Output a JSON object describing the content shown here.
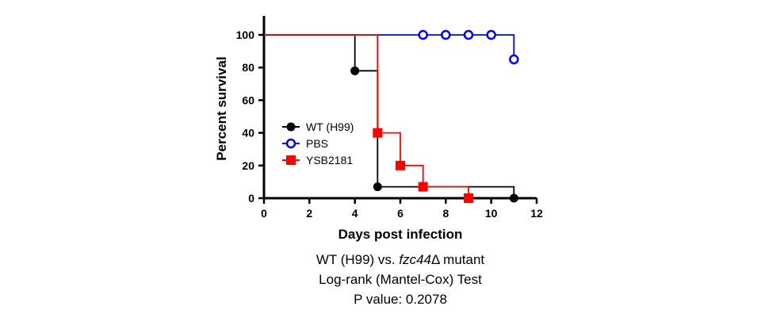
{
  "chart_data": {
    "type": "line",
    "subtype": "kaplan-meier survival (step)",
    "xlabel": "Days post infection",
    "ylabel": "Percent survival",
    "xlim": [
      0,
      12
    ],
    "ylim": [
      0,
      100
    ],
    "xticks": [
      0,
      2,
      4,
      6,
      8,
      10,
      12
    ],
    "yticks": [
      0,
      20,
      40,
      60,
      80,
      100
    ],
    "grid": false,
    "legend_position": "left-center",
    "series": [
      {
        "name": "WT (H99)",
        "color": "#000000",
        "marker": "filled-circle",
        "steps": [
          [
            0,
            100
          ],
          [
            4,
            100
          ],
          [
            4,
            78
          ],
          [
            5,
            78
          ],
          [
            5,
            7
          ],
          [
            11,
            7
          ],
          [
            11,
            0
          ]
        ],
        "marker_points": [
          [
            4,
            78
          ],
          [
            5,
            7
          ],
          [
            11,
            0
          ]
        ]
      },
      {
        "name": "PBS",
        "color": "#0000ff",
        "marker": "open-circle",
        "steps": [
          [
            0,
            100
          ],
          [
            11,
            100
          ],
          [
            11,
            85
          ]
        ],
        "marker_points": [
          [
            7,
            100
          ],
          [
            8,
            100
          ],
          [
            9,
            100
          ],
          [
            10,
            100
          ],
          [
            11,
            85
          ]
        ]
      },
      {
        "name": "YSB2181",
        "color": "#ff0000",
        "marker": "filled-square",
        "steps": [
          [
            0,
            100
          ],
          [
            5,
            100
          ],
          [
            5,
            40
          ],
          [
            6,
            40
          ],
          [
            6,
            20
          ],
          [
            7,
            20
          ],
          [
            7,
            7
          ],
          [
            9,
            7
          ],
          [
            9,
            0
          ]
        ],
        "marker_points": [
          [
            5,
            40
          ],
          [
            6,
            20
          ],
          [
            7,
            7
          ],
          [
            9,
            0
          ]
        ]
      }
    ]
  },
  "caption": {
    "line1_prefix": "WT (H99) vs. ",
    "line1_gene": "fzc44",
    "line1_suffix": "Δ mutant",
    "line2": "Log-rank (Mantel-Cox) Test",
    "line3": "P value: 0.2078"
  }
}
